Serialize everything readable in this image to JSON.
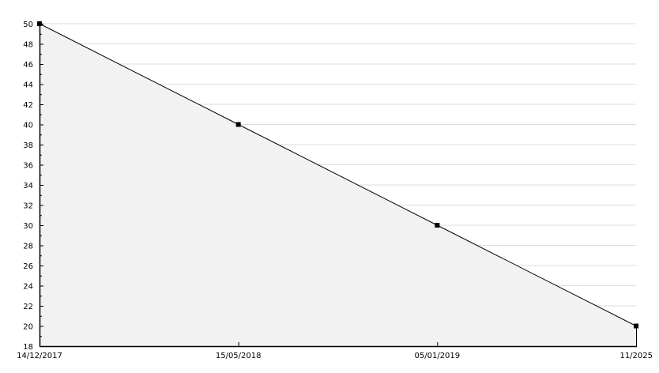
{
  "chart_data": {
    "type": "area",
    "title": "",
    "xlabel": "",
    "ylabel": "",
    "categories": [
      "14/12/2017",
      "15/05/2018",
      "05/01/2019",
      "11/2025"
    ],
    "values": [
      50,
      40,
      30,
      20
    ],
    "ylim": [
      18,
      50
    ],
    "yticks": [
      18,
      20,
      22,
      24,
      26,
      28,
      30,
      32,
      34,
      36,
      38,
      40,
      42,
      44,
      46,
      48,
      50
    ],
    "grid": true,
    "legend": "none",
    "colors": {
      "line": "#000000",
      "fill": "#f2f2f2",
      "grid": "#dddddd",
      "marker": "#000000"
    }
  }
}
